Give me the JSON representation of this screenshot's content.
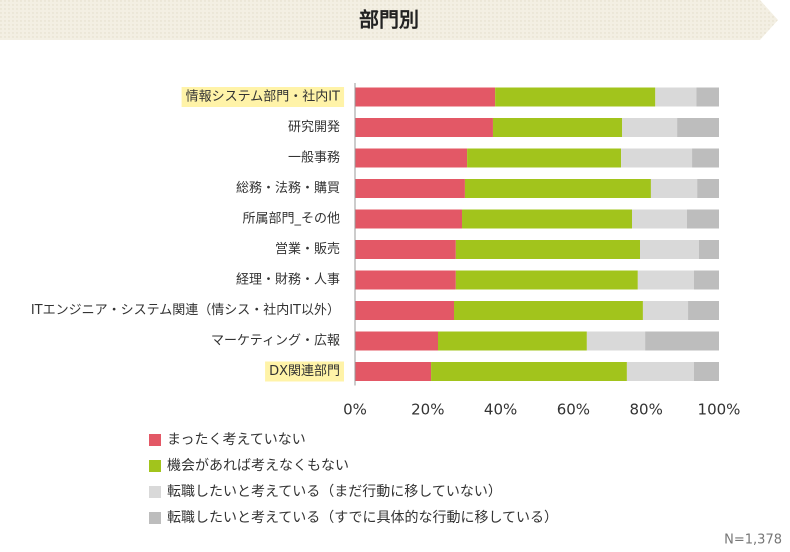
{
  "chart_data": {
    "type": "stacked-bar-horizontal",
    "title": "部門別",
    "categories": [
      "情報システム部門・社内IT",
      "研究開発",
      "一般事務",
      "総務・法務・購買",
      "所属部門_その他",
      "営業・販売",
      "経理・財務・人事",
      "ITエンジニア・システム関連（情シス・社内IT以外）",
      "マーケティング・広報",
      "DX関連部門"
    ],
    "highlight": [
      0,
      9
    ],
    "series": [
      {
        "name": "まったく考えていない",
        "color": "#e35866",
        "values": [
          38.5,
          37.9,
          30.8,
          30.2,
          29.4,
          27.7,
          27.7,
          27.2,
          22.8,
          20.9
        ]
      },
      {
        "name": "機会があれば考えなくもない",
        "color": "#a2c41c",
        "values": [
          44.0,
          35.5,
          42.3,
          51.1,
          46.7,
          50.6,
          50.0,
          51.9,
          40.9,
          53.8
        ]
      },
      {
        "name": "転職したいと考えている（まだ行動に移していない）",
        "color": "#d9d9d9",
        "values": [
          11.3,
          15.1,
          19.5,
          12.7,
          15.1,
          16.2,
          15.4,
          12.4,
          16.0,
          18.4
        ]
      },
      {
        "name": "転職したいと考えている（すでに具体的な行動に移している）",
        "color": "#bdbdbd",
        "values": [
          6.2,
          11.5,
          7.4,
          6.0,
          8.8,
          5.5,
          6.9,
          8.5,
          20.3,
          6.9
        ]
      }
    ],
    "xlim": [
      0,
      100
    ],
    "xticks": [
      {
        "value": 0,
        "label": "0%"
      },
      {
        "value": 20,
        "label": "20%"
      },
      {
        "value": 40,
        "label": "40%"
      },
      {
        "value": 60,
        "label": "60%"
      },
      {
        "value": 80,
        "label": "80%"
      },
      {
        "value": 100,
        "label": "100%"
      }
    ],
    "grid": false,
    "note": "N=1,378"
  }
}
